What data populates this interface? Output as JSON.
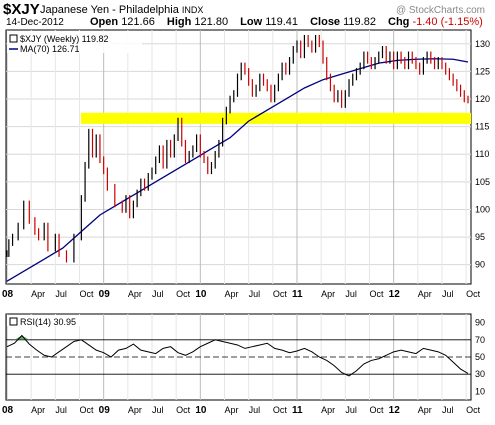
{
  "header": {
    "symbol": "$XJY",
    "name": "Japanese Yen - Philadelphia",
    "exchange": "INDX",
    "brand": "@ StockCharts.com",
    "date": "14-Dec-2012",
    "open_label": "Open",
    "open": "121.66",
    "high_label": "High",
    "high": "121.80",
    "low_label": "Low",
    "low": "119.41",
    "close_label": "Close",
    "close": "119.82",
    "chg_label": "Chg",
    "chg": "-1.40 (-1.15%)"
  },
  "legend": {
    "price": "$XJY (Weekly) 119.82",
    "ma": "MA(70) 126.71",
    "rsi": "RSI(14) 30.95"
  },
  "colors": {
    "up": "#000000",
    "down": "#cc0000",
    "ma": "#000080",
    "support": "#ffff00",
    "rsi_line": "#000000",
    "rsi_fill": "#4f9a4f"
  },
  "chart_data": [
    {
      "type": "line",
      "title": "$XJY (Weekly) 119.82",
      "x_ticks": [
        "08",
        "Apr",
        "Jul",
        "Oct",
        "09",
        "Apr",
        "Jul",
        "Oct",
        "10",
        "Apr",
        "Jul",
        "Oct",
        "11",
        "Apr",
        "Jul",
        "Oct",
        "12",
        "Apr",
        "Jul",
        "Oct"
      ],
      "y_ticks": [
        90,
        95,
        100,
        105,
        110,
        115,
        120,
        125,
        130
      ],
      "ylim": [
        86.5,
        132.5
      ],
      "grid": true,
      "support_band": [
        115.5,
        117.5
      ],
      "series": [
        {
          "name": "$XJY (Weekly) 119.82",
          "x": [
            0,
            1,
            3,
            6,
            9,
            12,
            15,
            17,
            20,
            22,
            26,
            28,
            32,
            36,
            40,
            42,
            44,
            46,
            48,
            50,
            52,
            54,
            58,
            62,
            64,
            66,
            68,
            70,
            72,
            74,
            76,
            78,
            80,
            82,
            84,
            86,
            88,
            90,
            92,
            94,
            96,
            98,
            100,
            102,
            104,
            106,
            108,
            110,
            112,
            114,
            116,
            118,
            120,
            122,
            124,
            126,
            128,
            130,
            132,
            134,
            136,
            138,
            140,
            142,
            144,
            146,
            148,
            150,
            152,
            154,
            156,
            158,
            160,
            162,
            164,
            166,
            168,
            170,
            172,
            174,
            176,
            178,
            180,
            182,
            184,
            186,
            188,
            190,
            192,
            194,
            196,
            198,
            200,
            202,
            204,
            206,
            208,
            210,
            212,
            214,
            216,
            218,
            220,
            222,
            224,
            226,
            228,
            230,
            232,
            234,
            236,
            238,
            240,
            242,
            244,
            246,
            248
          ],
          "values": [
            92,
            94,
            95,
            97,
            101,
            98,
            96,
            95,
            97,
            93,
            95,
            92,
            91,
            95,
            102,
            108,
            114,
            110,
            113,
            109,
            107,
            104,
            101,
            100,
            102,
            99,
            101,
            103,
            105,
            104,
            106,
            107,
            109,
            111,
            108,
            112,
            110,
            113,
            116,
            112,
            109,
            110,
            111,
            113,
            110,
            109,
            107,
            108,
            110,
            112,
            116,
            118,
            120,
            121,
            124,
            126,
            125,
            123,
            121,
            122,
            124,
            123,
            122,
            120,
            122,
            124,
            126,
            125,
            127,
            129,
            130,
            128,
            131,
            130,
            129,
            131,
            130,
            127,
            124,
            122,
            120,
            121,
            119,
            121,
            123,
            124,
            125,
            126,
            128,
            127,
            126,
            127,
            128,
            129,
            127,
            128,
            126,
            128,
            127,
            126,
            128,
            127,
            126,
            125,
            127,
            128,
            127,
            126,
            127,
            126,
            125,
            124,
            123,
            122,
            121,
            120,
            119.82
          ]
        },
        {
          "name": "MA(70) 126.71",
          "x": [
            0,
            10,
            20,
            30,
            40,
            50,
            60,
            70,
            80,
            90,
            100,
            110,
            120,
            130,
            140,
            150,
            160,
            170,
            180,
            190,
            200,
            210,
            220,
            230,
            240,
            248
          ],
          "values": [
            87,
            89,
            91,
            93,
            96,
            99,
            101,
            103,
            105,
            107,
            109,
            111,
            113,
            116,
            118,
            120,
            122,
            123.5,
            124.5,
            125.5,
            126.5,
            127,
            127.2,
            127.3,
            127.2,
            126.71
          ]
        }
      ]
    },
    {
      "type": "line",
      "title": "RSI(14) 30.95",
      "y_ticks": [
        10,
        30,
        50,
        70,
        90
      ],
      "ylim": [
        0,
        100
      ],
      "reference_lines": [
        30,
        50,
        70
      ],
      "series": [
        {
          "name": "RSI(14) 30.95",
          "x": [
            0,
            4,
            8,
            12,
            16,
            20,
            24,
            28,
            32,
            36,
            40,
            44,
            48,
            52,
            56,
            60,
            64,
            68,
            72,
            76,
            80,
            84,
            88,
            92,
            96,
            100,
            104,
            108,
            112,
            116,
            120,
            124,
            128,
            132,
            136,
            140,
            144,
            148,
            152,
            156,
            160,
            164,
            168,
            172,
            176,
            180,
            184,
            188,
            192,
            196,
            200,
            204,
            208,
            212,
            216,
            220,
            224,
            228,
            232,
            236,
            240,
            244,
            248
          ],
          "values": [
            62,
            66,
            75,
            65,
            58,
            52,
            50,
            56,
            62,
            68,
            70,
            64,
            58,
            55,
            50,
            58,
            60,
            65,
            58,
            56,
            54,
            60,
            62,
            55,
            52,
            56,
            62,
            66,
            70,
            68,
            66,
            64,
            60,
            62,
            64,
            66,
            60,
            58,
            55,
            57,
            60,
            56,
            50,
            46,
            40,
            32,
            28,
            34,
            42,
            46,
            48,
            52,
            56,
            58,
            56,
            54,
            60,
            58,
            56,
            52,
            44,
            36,
            30.95
          ]
        }
      ]
    }
  ]
}
